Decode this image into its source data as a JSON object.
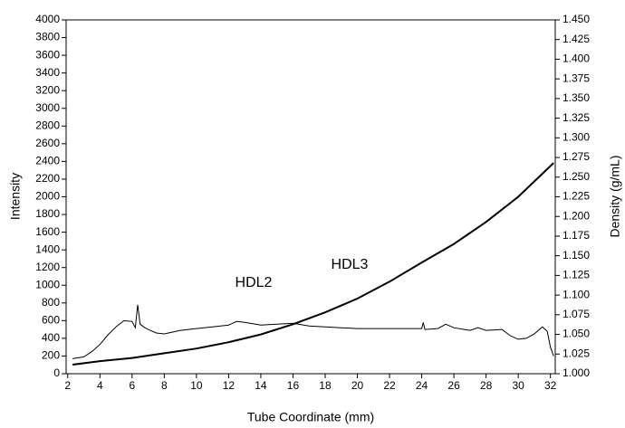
{
  "chart_data": {
    "type": "line",
    "xlabel": "Tube Coordinate (mm)",
    "ylabel": "Intensity",
    "y2label": "Density (g/mL)",
    "xlim": [
      1.9,
      32.3
    ],
    "xticks": [
      2,
      4,
      6,
      8,
      10,
      12,
      14,
      16,
      18,
      20,
      22,
      24,
      26,
      28,
      30,
      32
    ],
    "ylim": [
      0,
      4000
    ],
    "yticks": [
      0,
      200,
      400,
      600,
      800,
      1000,
      1200,
      1400,
      1600,
      1800,
      2000,
      2200,
      2400,
      2600,
      2800,
      3000,
      3200,
      3400,
      3600,
      3800,
      4000
    ],
    "y2lim": [
      1.0,
      1.45
    ],
    "y2ticks": [
      {
        "value": 1.0,
        "label": "1.000"
      },
      {
        "value": 1.025,
        "label": "1.025"
      },
      {
        "value": 1.05,
        "label": "1.050"
      },
      {
        "value": 1.075,
        "label": "1.075"
      },
      {
        "value": 1.1,
        "label": "1.100"
      },
      {
        "value": 1.125,
        "label": "1.125"
      },
      {
        "value": 1.15,
        "label": "1.150"
      },
      {
        "value": 1.175,
        "label": "1.175"
      },
      {
        "value": 1.2,
        "label": "1.200"
      },
      {
        "value": 1.225,
        "label": "1.225"
      },
      {
        "value": 1.25,
        "label": "1.250"
      },
      {
        "value": 1.275,
        "label": "1.275"
      },
      {
        "value": 1.3,
        "label": "1.300"
      },
      {
        "value": 1.325,
        "label": "1.325"
      },
      {
        "value": 1.35,
        "label": "1.350"
      },
      {
        "value": 1.375,
        "label": "1.375"
      },
      {
        "value": 1.4,
        "label": "1.400"
      },
      {
        "value": 1.425,
        "label": "1.425"
      },
      {
        "value": 1.45,
        "label": "1.450"
      }
    ],
    "series": [
      {
        "color": "#000000",
        "axis": "y",
        "x": [
          2.3,
          3,
          3.5,
          4,
          4.5,
          5,
          5.5,
          6,
          6.2,
          6.35,
          6.5,
          6.8,
          7,
          7.5,
          8,
          9,
          10,
          11,
          12,
          12.5,
          13,
          14,
          15,
          16,
          17,
          18,
          19,
          20,
          22,
          24,
          24.1,
          24.2,
          25,
          25.5,
          26,
          27,
          27.5,
          28,
          29,
          29.5,
          30,
          30.5,
          31,
          31.5,
          31.8,
          32,
          32.2
        ],
        "values": [
          170,
          190,
          250,
          330,
          440,
          530,
          600,
          590,
          520,
          780,
          560,
          520,
          500,
          460,
          450,
          490,
          510,
          530,
          550,
          590,
          580,
          550,
          560,
          570,
          540,
          530,
          520,
          510,
          510,
          510,
          580,
          500,
          510,
          560,
          520,
          490,
          520,
          490,
          500,
          430,
          390,
          400,
          450,
          530,
          480,
          300,
          200
        ]
      },
      {
        "color": "#000000",
        "axis": "y2",
        "x": [
          2.3,
          4,
          6,
          8,
          10,
          12,
          14,
          16,
          18,
          20,
          22,
          24,
          26,
          28,
          30,
          32.2
        ],
        "values": [
          1.0115,
          1.016,
          1.02,
          1.026,
          1.032,
          1.04,
          1.05,
          1.063,
          1.078,
          1.0955,
          1.117,
          1.1415,
          1.165,
          1.193,
          1.225,
          1.268
        ]
      }
    ],
    "annotations": [
      "HDL2",
      "HDL3"
    ]
  }
}
